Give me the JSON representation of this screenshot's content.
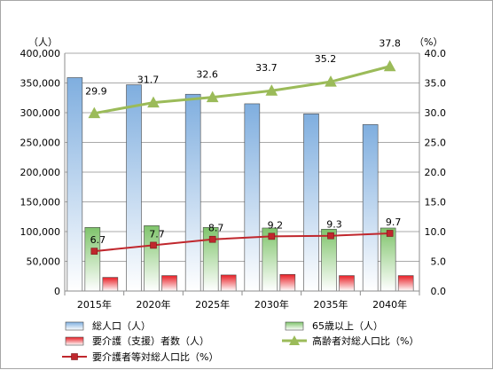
{
  "chart_data": {
    "type": "bar",
    "categories": [
      "2015年",
      "2020年",
      "2025年",
      "2030年",
      "2035年",
      "2040年"
    ],
    "left_axis": {
      "unit_label": "（人）",
      "ylim": [
        0,
        400000
      ],
      "ticks": [
        "0",
        "50,000",
        "100,000",
        "150,000",
        "200,000",
        "250,000",
        "300,000",
        "350,000",
        "400,000"
      ]
    },
    "right_axis": {
      "unit_label": "（%）",
      "ylim": [
        0,
        40
      ],
      "ticks": [
        "0.0",
        "5.0",
        "10.0",
        "15.0",
        "20.0",
        "25.0",
        "30.0",
        "35.0",
        "40.0"
      ]
    },
    "grid": true,
    "legend_position": "bottom",
    "series": [
      {
        "name": "総人口（人）",
        "kind": "bar",
        "axis": "left",
        "color": "#7faedf",
        "values": [
          359000,
          347000,
          331000,
          315000,
          298000,
          280000
        ]
      },
      {
        "name": "65歳以上（人）",
        "kind": "bar",
        "axis": "left",
        "color": "#7fc46b",
        "values": [
          107000,
          110000,
          107000,
          106000,
          104000,
          106000
        ]
      },
      {
        "name": "要介護（支援）者数（人）",
        "kind": "bar",
        "axis": "left",
        "color": "#e81e25",
        "values": [
          23000,
          26000,
          27000,
          28000,
          26000,
          26000
        ]
      },
      {
        "name": "高齢者対総人口比（%）",
        "kind": "line",
        "axis": "right",
        "color": "#9bbb59",
        "marker": "triangle",
        "values": [
          29.9,
          31.7,
          32.6,
          33.7,
          35.2,
          37.8
        ],
        "labels": [
          "29.9",
          "31.7",
          "32.6",
          "33.7",
          "35.2",
          "37.8"
        ]
      },
      {
        "name": "要介護者等対総人口比（%）",
        "kind": "line",
        "axis": "right",
        "color": "#c0272d",
        "marker": "square",
        "values": [
          6.7,
          7.7,
          8.7,
          9.2,
          9.3,
          9.7
        ],
        "labels": [
          "6.7",
          "7.7",
          "8.7",
          "9.2",
          "9.3",
          "9.7"
        ]
      }
    ]
  }
}
